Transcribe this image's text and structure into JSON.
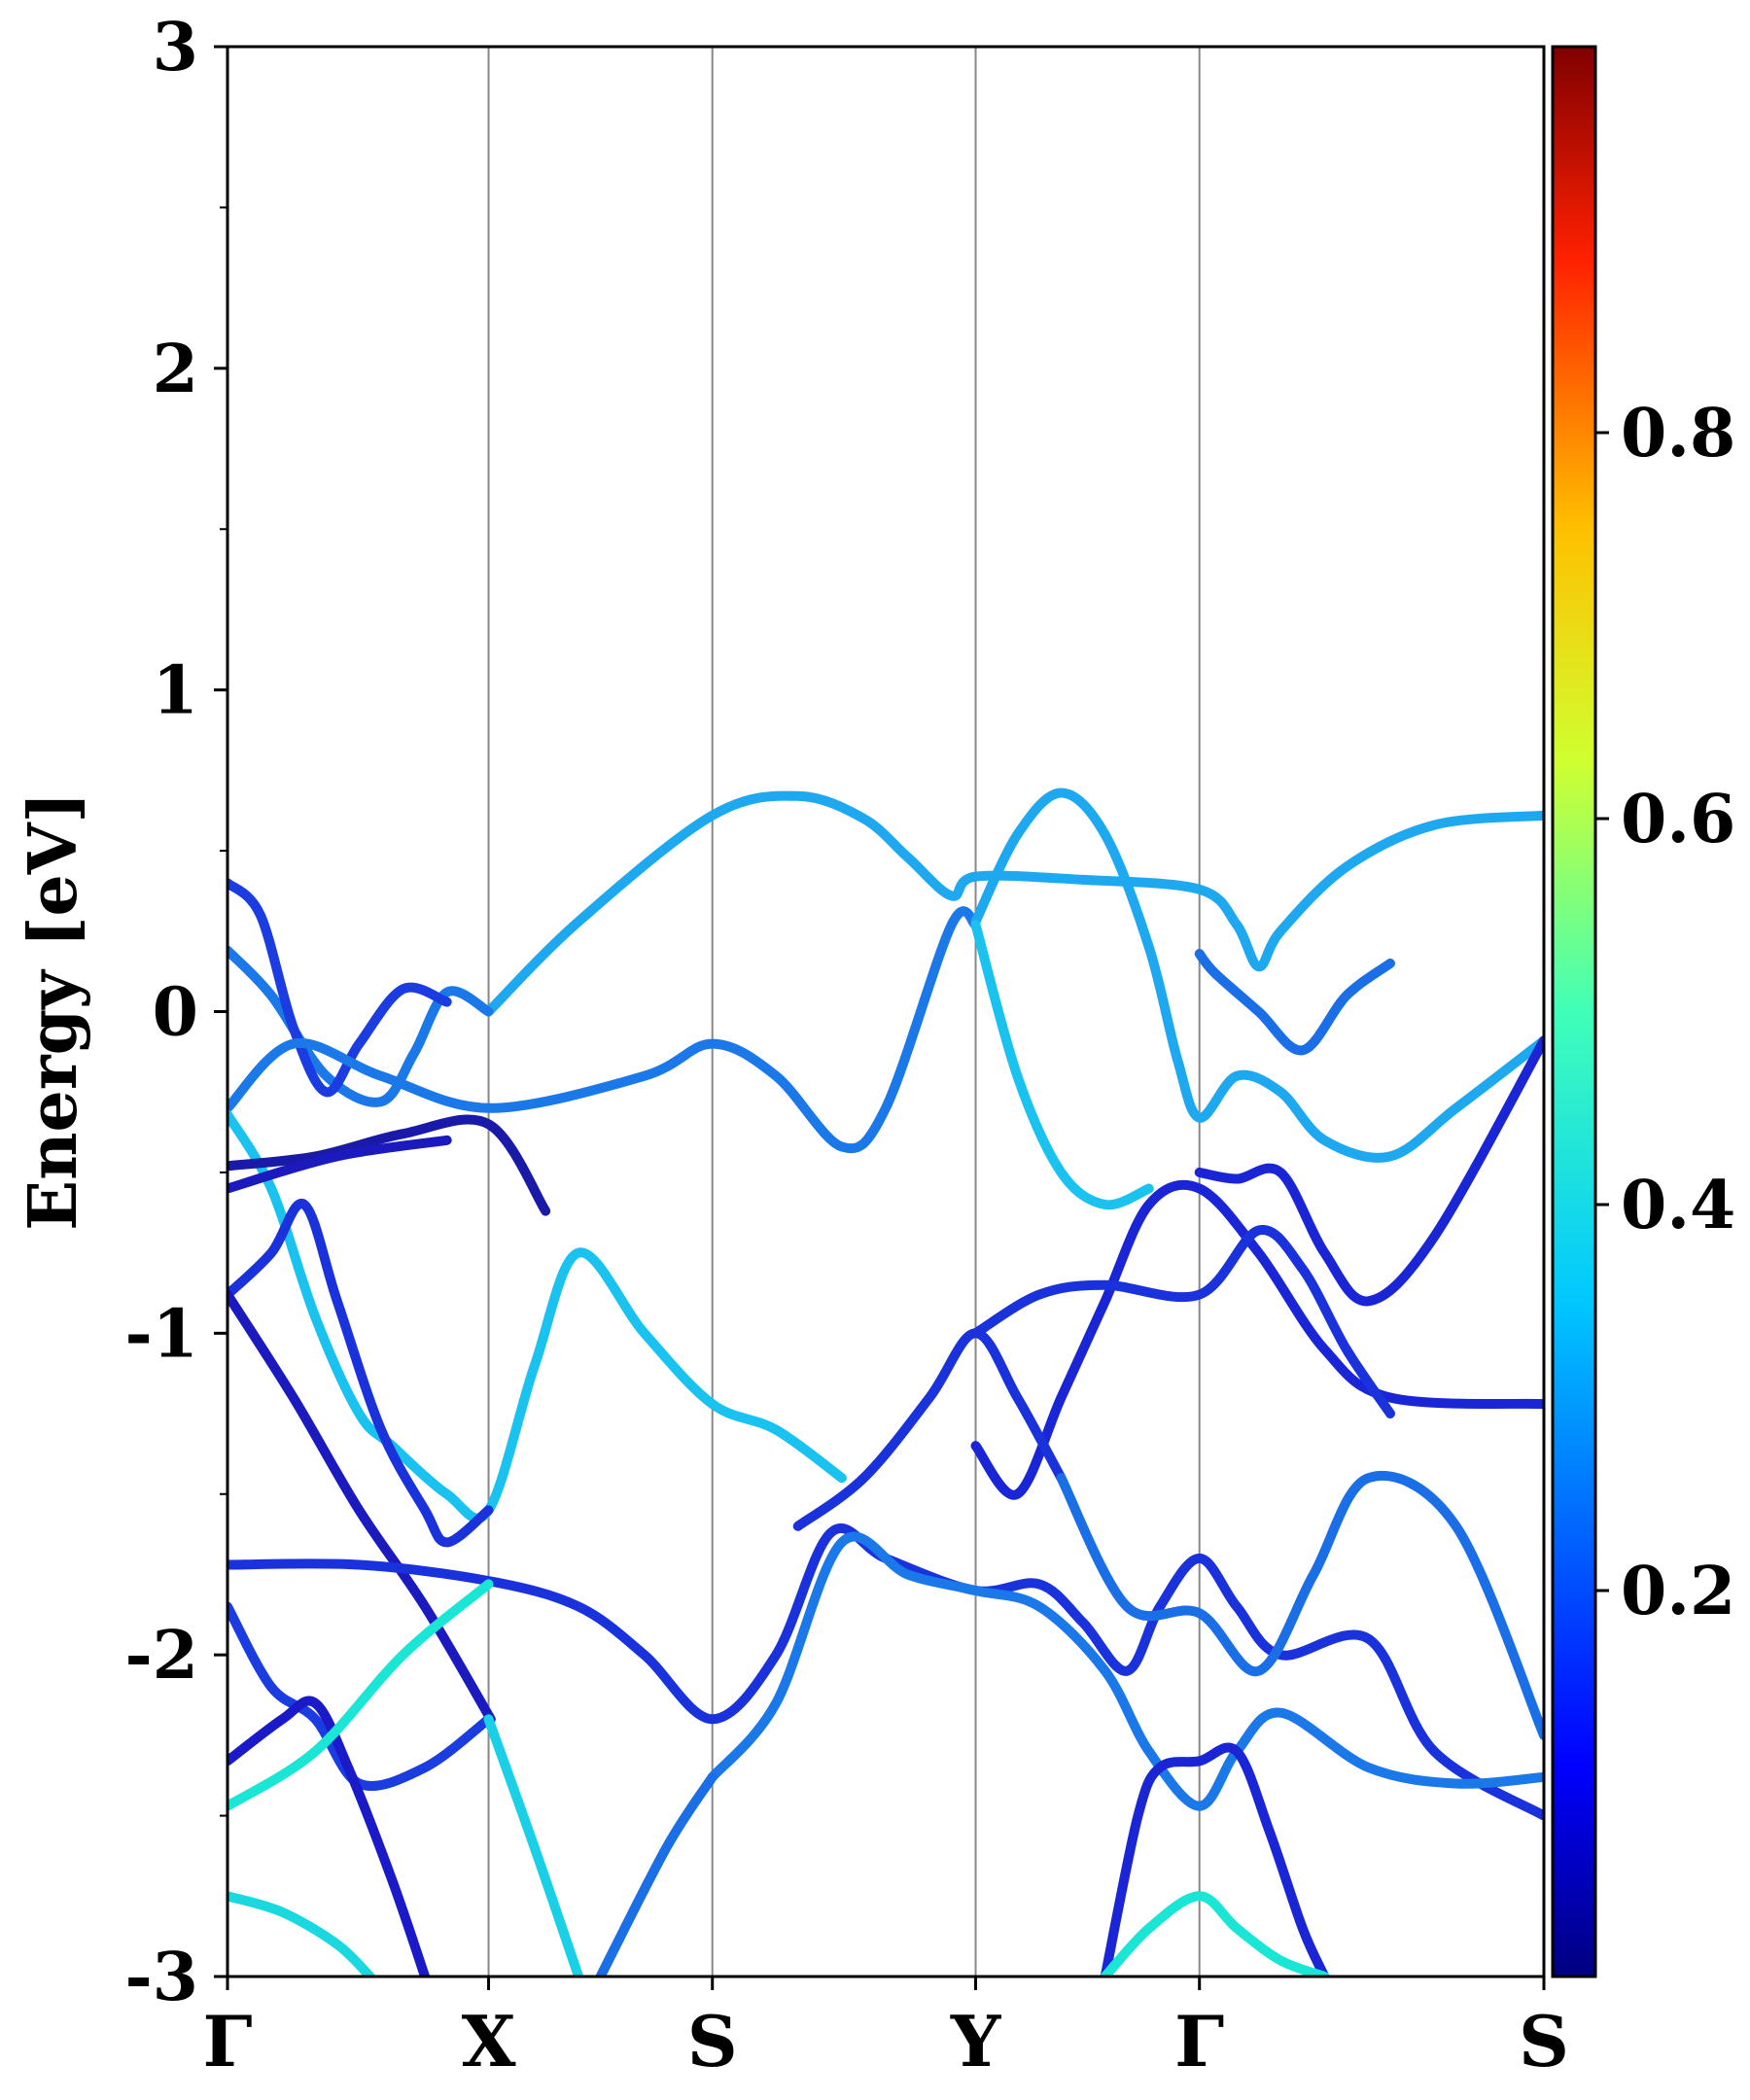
{
  "chart_data": {
    "type": "line",
    "xlabel": "",
    "ylabel": "Energy [eV]",
    "ylim": [
      -3,
      3
    ],
    "k_points": [
      {
        "label": "Γ",
        "x": 0
      },
      {
        "label": "X",
        "x": 1.19
      },
      {
        "label": "S",
        "x": 2.21
      },
      {
        "label": "Y",
        "x": 3.41
      },
      {
        "label": "Γ",
        "x": 4.43
      },
      {
        "label": "S",
        "x": 6.0
      }
    ],
    "y_ticks": [
      "3",
      "2",
      "1",
      "0",
      "-1",
      "-2",
      "-3"
    ],
    "y_tick_values": [
      3,
      2,
      1,
      0,
      -1,
      -2,
      -3
    ],
    "colorbar": {
      "colormap": "jet",
      "range": [
        0,
        1
      ],
      "tick_values": [
        0.2,
        0.4,
        0.6,
        0.8
      ],
      "tick_labels": [
        "0.2",
        "0.4",
        "0.6",
        "0.8"
      ]
    },
    "series": [
      {
        "weight": 0.27,
        "color": "#1ea8f0",
        "points": [
          [
            1.19,
            0.0
          ],
          [
            1.6,
            0.28
          ],
          [
            2.21,
            0.61
          ],
          [
            2.6,
            0.67
          ],
          [
            2.9,
            0.6
          ],
          [
            3.1,
            0.48
          ],
          [
            3.3,
            0.36
          ],
          [
            3.41,
            0.42
          ],
          [
            3.9,
            0.41
          ],
          [
            4.43,
            0.38
          ],
          [
            4.6,
            0.27
          ],
          [
            4.7,
            0.14
          ],
          [
            4.8,
            0.25
          ],
          [
            5.1,
            0.45
          ],
          [
            5.5,
            0.58
          ],
          [
            6.0,
            0.61
          ]
        ]
      },
      {
        "weight": 0.22,
        "color": "#1a78e8",
        "points": [
          [
            0,
            0.19
          ],
          [
            0.2,
            0.05
          ],
          [
            0.45,
            -0.2
          ],
          [
            0.7,
            -0.28
          ],
          [
            0.85,
            -0.13
          ],
          [
            1.0,
            0.06
          ],
          [
            1.19,
            0.0
          ]
        ]
      },
      {
        "weight": 0.12,
        "color": "#1a3ce0",
        "points": [
          [
            0,
            0.4
          ],
          [
            0.15,
            0.3
          ],
          [
            0.3,
            -0.05
          ],
          [
            0.45,
            -0.25
          ],
          [
            0.6,
            -0.1
          ],
          [
            0.8,
            0.07
          ],
          [
            1.0,
            0.03
          ]
        ]
      },
      {
        "weight": 0.22,
        "color": "#1a78e8",
        "points": [
          [
            0,
            -0.3
          ],
          [
            0.3,
            -0.1
          ],
          [
            0.7,
            -0.2
          ],
          [
            1.2,
            -0.3
          ],
          [
            1.9,
            -0.2
          ],
          [
            2.21,
            -0.1
          ],
          [
            2.5,
            -0.2
          ],
          [
            2.8,
            -0.42
          ],
          [
            3.0,
            -0.3
          ],
          [
            3.3,
            0.27
          ],
          [
            3.41,
            0.27
          ]
        ]
      },
      {
        "weight": 0.27,
        "color": "#1ea8f0",
        "points": [
          [
            3.41,
            0.28
          ],
          [
            3.6,
            0.55
          ],
          [
            3.8,
            0.68
          ],
          [
            4.0,
            0.55
          ],
          [
            4.2,
            0.2
          ],
          [
            4.33,
            -0.15
          ],
          [
            4.43,
            -0.33
          ],
          [
            4.6,
            -0.2
          ],
          [
            4.8,
            -0.25
          ],
          [
            5.0,
            -0.4
          ],
          [
            5.3,
            -0.45
          ],
          [
            5.6,
            -0.3
          ],
          [
            6.0,
            -0.09
          ]
        ]
      },
      {
        "weight": 0.2,
        "color": "#1a6ee6",
        "points": [
          [
            4.43,
            0.18
          ],
          [
            4.5,
            0.12
          ],
          [
            4.7,
            0.0
          ],
          [
            4.9,
            -0.12
          ],
          [
            5.1,
            0.05
          ],
          [
            5.3,
            0.15
          ]
        ]
      },
      {
        "weight": 0.3,
        "color": "#19c2ef",
        "points": [
          [
            0,
            -0.32
          ],
          [
            0.2,
            -0.55
          ],
          [
            0.4,
            -0.95
          ],
          [
            0.6,
            -1.25
          ],
          [
            0.75,
            -1.35
          ],
          [
            1.0,
            -1.5
          ],
          [
            1.19,
            -1.55
          ],
          [
            1.4,
            -1.1
          ],
          [
            1.6,
            -0.75
          ],
          [
            1.9,
            -1.0
          ],
          [
            2.21,
            -1.22
          ],
          [
            2.5,
            -1.3
          ],
          [
            2.8,
            -1.45
          ]
        ]
      },
      {
        "weight": 0.3,
        "color": "#19c2ef",
        "points": [
          [
            3.41,
            0.27
          ],
          [
            3.6,
            -0.2
          ],
          [
            3.8,
            -0.5
          ],
          [
            4.0,
            -0.6
          ],
          [
            4.2,
            -0.55
          ]
        ]
      },
      {
        "weight": 0.02,
        "color": "#1a1aa8",
        "points": [
          [
            0,
            -0.48
          ],
          [
            0.4,
            -0.45
          ],
          [
            0.8,
            -0.38
          ],
          [
            1.19,
            -0.35
          ],
          [
            1.45,
            -0.62
          ]
        ]
      },
      {
        "weight": 0.05,
        "color": "#1a1abf",
        "points": [
          [
            0,
            -0.55
          ],
          [
            0.5,
            -0.45
          ],
          [
            1.0,
            -0.4
          ]
        ]
      },
      {
        "weight": 0.1,
        "color": "#1a32dc",
        "points": [
          [
            0,
            -0.88
          ],
          [
            0.2,
            -0.75
          ],
          [
            0.35,
            -0.6
          ],
          [
            0.5,
            -0.9
          ],
          [
            0.7,
            -1.3
          ],
          [
            0.9,
            -1.55
          ],
          [
            1.0,
            -1.65
          ],
          [
            1.19,
            -1.55
          ]
        ]
      },
      {
        "weight": 0.05,
        "color": "#1a1abf",
        "points": [
          [
            0,
            -0.88
          ],
          [
            0.3,
            -1.2
          ],
          [
            0.6,
            -1.55
          ],
          [
            0.9,
            -1.85
          ],
          [
            1.2,
            -2.2
          ]
        ]
      },
      {
        "weight": 0.08,
        "color": "#1a26d6",
        "points": [
          [
            3.41,
            -1.35
          ],
          [
            3.6,
            -1.5
          ],
          [
            3.8,
            -1.2
          ],
          [
            4.0,
            -0.9
          ],
          [
            4.2,
            -0.6
          ],
          [
            4.43,
            -0.55
          ],
          [
            4.7,
            -0.75
          ],
          [
            5.0,
            -1.05
          ],
          [
            5.3,
            -1.2
          ],
          [
            6.0,
            -1.22
          ]
        ]
      },
      {
        "weight": 0.08,
        "color": "#1a26d6",
        "points": [
          [
            4.43,
            -0.5
          ],
          [
            4.6,
            -0.52
          ],
          [
            4.8,
            -0.5
          ],
          [
            5.0,
            -0.75
          ],
          [
            5.2,
            -0.9
          ],
          [
            5.5,
            -0.7
          ],
          [
            6.0,
            -0.09
          ]
        ]
      },
      {
        "weight": 0.1,
        "color": "#1a32dc",
        "points": [
          [
            3.41,
            -1.0
          ],
          [
            3.7,
            -0.88
          ],
          [
            4.0,
            -0.85
          ],
          [
            4.43,
            -0.88
          ],
          [
            4.7,
            -0.68
          ],
          [
            4.9,
            -0.8
          ],
          [
            5.1,
            -1.05
          ],
          [
            5.3,
            -1.25
          ]
        ]
      },
      {
        "weight": 0.1,
        "color": "#1a32dc",
        "points": [
          [
            2.6,
            -1.6
          ],
          [
            2.9,
            -1.45
          ],
          [
            3.2,
            -1.2
          ],
          [
            3.41,
            -1.0
          ],
          [
            3.6,
            -1.2
          ],
          [
            3.8,
            -1.45
          ]
        ]
      },
      {
        "weight": 0.1,
        "color": "#1a32dc",
        "points": [
          [
            0,
            -1.72
          ],
          [
            0.6,
            -1.72
          ],
          [
            1.19,
            -1.77
          ],
          [
            1.6,
            -1.85
          ],
          [
            1.9,
            -2.0
          ],
          [
            2.21,
            -2.2
          ],
          [
            2.5,
            -2.0
          ],
          [
            2.75,
            -1.62
          ],
          [
            3.0,
            -1.7
          ],
          [
            3.41,
            -1.8
          ],
          [
            3.7,
            -1.78
          ],
          [
            3.9,
            -1.9
          ],
          [
            4.1,
            -2.05
          ],
          [
            4.25,
            -1.85
          ],
          [
            4.43,
            -1.7
          ],
          [
            4.6,
            -1.85
          ],
          [
            4.8,
            -2.0
          ],
          [
            5.2,
            -1.95
          ],
          [
            5.5,
            -2.3
          ],
          [
            6.0,
            -2.5
          ]
        ]
      },
      {
        "weight": 0.22,
        "color": "#1a78e8",
        "points": [
          [
            2.21,
            -2.38
          ],
          [
            2.5,
            -2.15
          ],
          [
            2.8,
            -1.65
          ],
          [
            3.1,
            -1.75
          ],
          [
            3.41,
            -1.8
          ],
          [
            3.7,
            -1.85
          ],
          [
            4.0,
            -2.05
          ],
          [
            4.2,
            -2.3
          ],
          [
            4.43,
            -2.47
          ],
          [
            4.6,
            -2.3
          ],
          [
            4.8,
            -2.18
          ],
          [
            5.2,
            -2.35
          ],
          [
            5.6,
            -2.4
          ],
          [
            6.0,
            -2.38
          ]
        ]
      },
      {
        "weight": 0.2,
        "color": "#1a6ee6",
        "points": [
          [
            3.8,
            -1.45
          ],
          [
            4.1,
            -1.85
          ],
          [
            4.43,
            -1.87
          ],
          [
            4.7,
            -2.05
          ],
          [
            4.95,
            -1.75
          ],
          [
            5.2,
            -1.45
          ],
          [
            5.6,
            -1.6
          ],
          [
            6.0,
            -2.25
          ]
        ]
      },
      {
        "weight": 0.12,
        "color": "#1a3ce0",
        "points": [
          [
            0,
            -1.85
          ],
          [
            0.2,
            -2.1
          ],
          [
            0.4,
            -2.2
          ],
          [
            0.6,
            -2.4
          ],
          [
            0.9,
            -2.35
          ],
          [
            1.19,
            -2.2
          ]
        ]
      },
      {
        "weight": 0.06,
        "color": "#1a1ac8",
        "points": [
          [
            0,
            -2.33
          ],
          [
            0.25,
            -2.2
          ],
          [
            0.4,
            -2.15
          ],
          [
            0.55,
            -2.35
          ],
          [
            0.75,
            -2.7
          ],
          [
            0.9,
            -3.0
          ]
        ]
      },
      {
        "weight": 0.36,
        "color": "#1ae6d6",
        "points": [
          [
            0,
            -2.47
          ],
          [
            0.4,
            -2.3
          ],
          [
            0.8,
            -2.0
          ],
          [
            1.19,
            -1.78
          ]
        ]
      },
      {
        "weight": 0.32,
        "color": "#1ad0e6",
        "points": [
          [
            1.19,
            -2.2
          ],
          [
            1.4,
            -2.6
          ],
          [
            1.6,
            -3.0
          ]
        ]
      },
      {
        "weight": 0.2,
        "color": "#1a6ee6",
        "points": [
          [
            1.7,
            -3.0
          ],
          [
            2.0,
            -2.6
          ],
          [
            2.21,
            -2.38
          ]
        ]
      },
      {
        "weight": 0.08,
        "color": "#1a26d6",
        "points": [
          [
            4.0,
            -3.0
          ],
          [
            4.15,
            -2.5
          ],
          [
            4.25,
            -2.35
          ],
          [
            4.43,
            -2.33
          ],
          [
            4.6,
            -2.3
          ],
          [
            4.75,
            -2.55
          ],
          [
            4.9,
            -2.85
          ],
          [
            5.0,
            -3.0
          ]
        ]
      },
      {
        "weight": 0.36,
        "color": "#1ae6d6",
        "points": [
          [
            4.0,
            -3.0
          ],
          [
            4.2,
            -2.85
          ],
          [
            4.43,
            -2.75
          ],
          [
            4.6,
            -2.85
          ],
          [
            4.8,
            -2.95
          ],
          [
            5.0,
            -3.0
          ]
        ]
      },
      {
        "weight": 0.34,
        "color": "#1ad8e0",
        "points": [
          [
            0,
            -2.75
          ],
          [
            0.25,
            -2.8
          ],
          [
            0.5,
            -2.9
          ],
          [
            0.65,
            -3.0
          ]
        ]
      }
    ]
  }
}
